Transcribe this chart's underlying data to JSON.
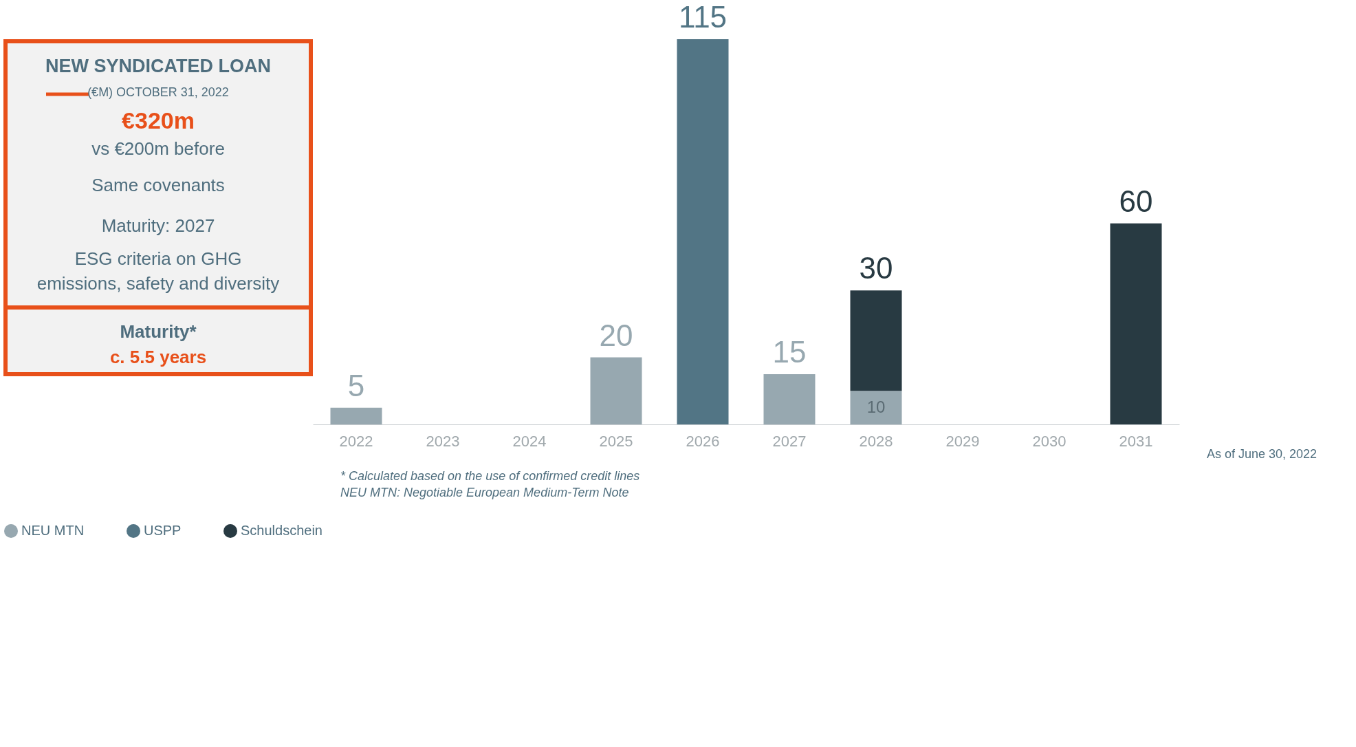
{
  "chart_data": [
    {
      "type": "other",
      "title": "NEW SYNDICATED LOAN",
      "subtitle": "(€M) OCTOBER 31, 2022",
      "annotations": [
        "€320m",
        "vs €200m before",
        "Same covenants",
        "Maturity: 2027",
        "ESG criteria on GHG",
        "emissions, safety and diversity",
        "Maturity*",
        "c. 5.5 years"
      ]
    },
    {
      "type": "bar",
      "stacked": true,
      "categories": [
        "2022",
        "2023",
        "2024",
        "2025",
        "2026",
        "2027",
        "2028",
        "2029",
        "2030",
        "2031"
      ],
      "series": [
        {
          "name": "NEU MTN",
          "color": "#97a8b0",
          "values": [
            5,
            null,
            null,
            20,
            null,
            15,
            10,
            null,
            null,
            null
          ]
        },
        {
          "name": "USPP",
          "color": "#527585",
          "values": [
            null,
            null,
            null,
            null,
            115,
            null,
            null,
            null,
            null,
            null
          ]
        },
        {
          "name": "Schuldschein",
          "color": "#283a42",
          "values": [
            null,
            null,
            null,
            null,
            null,
            null,
            30,
            null,
            null,
            60
          ]
        }
      ],
      "data_labels": true,
      "legend": "bottom",
      "grid": false,
      "tick_labels": "x",
      "annotations": [
        "As of June 30, 2022",
        "* Calculated based on the use of confirmed credit lines",
        "NEU MTN: Negotiable European Medium-Term Note"
      ]
    }
  ]
}
